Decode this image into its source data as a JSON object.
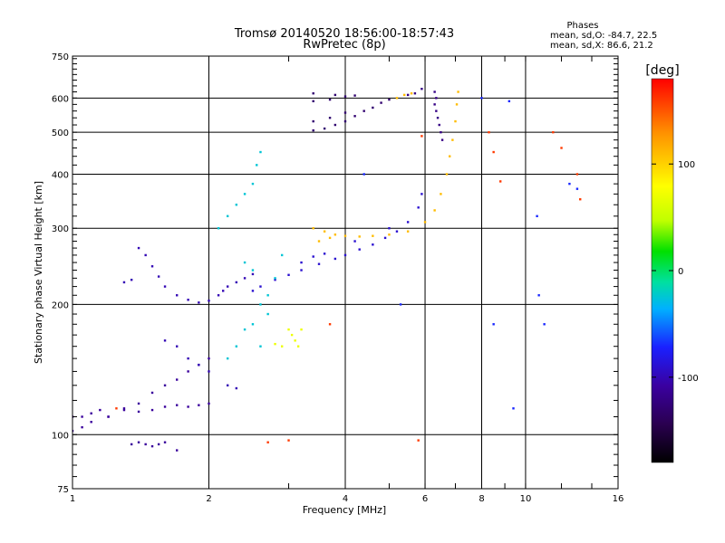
{
  "header": {
    "title": "Tromsø 20140520 18:56:00-18:57:43",
    "subtitle": "RwPretec (8p)"
  },
  "stats": {
    "heading": "Phases",
    "o_line": "mean, sd,O: -84.7, 22.5",
    "x_line": "mean, sd,X:  86.6, 21.2"
  },
  "chart_data": {
    "type": "scatter",
    "title": "Tromsø 20140520 18:56:00-18:57:43",
    "subtitle": "RwPretec (8p)",
    "xlabel": "Frequency [MHz]",
    "ylabel": "Stationary phase Virtual Height [km]",
    "x_scale": "log",
    "y_scale": "log",
    "xlim": [
      1,
      16
    ],
    "ylim": [
      75,
      750
    ],
    "x_ticks": [
      1,
      2,
      4,
      6,
      8,
      10,
      16
    ],
    "x_tick_labels": [
      "1",
      "2",
      "4",
      "6",
      "8",
      "10",
      "16"
    ],
    "y_ticks": [
      75,
      100,
      200,
      300,
      400,
      500,
      600,
      750
    ],
    "y_tick_labels": [
      "75",
      "100",
      "200",
      "300",
      "400",
      "500",
      "600",
      "750"
    ],
    "grid": true,
    "colorbar": {
      "label": "[deg]",
      "range": [
        -180,
        180
      ],
      "ticks": [
        100,
        0,
        -100
      ],
      "tick_labels": [
        "100",
        "0",
        "-100"
      ],
      "colormap": [
        "#000000",
        "#2a0050",
        "#3a00a0",
        "#1a20ff",
        "#00b0ff",
        "#00e0a0",
        "#00e000",
        "#c0ff00",
        "#ffff00",
        "#ff9000",
        "#ff0000"
      ]
    },
    "series": [
      {
        "color_phase": -110,
        "points": [
          [
            1.0,
            110
          ],
          [
            1.05,
            110
          ],
          [
            1.1,
            112
          ],
          [
            1.15,
            114
          ],
          [
            1.2,
            110
          ],
          [
            1.3,
            114
          ],
          [
            1.4,
            113
          ],
          [
            1.5,
            114
          ],
          [
            1.6,
            116
          ],
          [
            1.7,
            117
          ],
          [
            1.8,
            116
          ],
          [
            1.9,
            117
          ],
          [
            2.0,
            118
          ],
          [
            1.0,
            102
          ],
          [
            1.05,
            104
          ],
          [
            1.1,
            107
          ],
          [
            1.2,
            110
          ],
          [
            1.3,
            115
          ],
          [
            1.4,
            118
          ],
          [
            1.5,
            125
          ],
          [
            1.6,
            130
          ],
          [
            1.7,
            134
          ],
          [
            1.8,
            140
          ],
          [
            1.9,
            145
          ],
          [
            2.0,
            150
          ],
          [
            1.35,
            95
          ],
          [
            1.4,
            96
          ],
          [
            1.45,
            95
          ],
          [
            1.5,
            94
          ],
          [
            1.55,
            95
          ],
          [
            1.6,
            96
          ],
          [
            1.7,
            92
          ]
        ]
      },
      {
        "color_phase": -100,
        "points": [
          [
            1.4,
            270
          ],
          [
            1.45,
            260
          ],
          [
            1.5,
            245
          ],
          [
            1.55,
            232
          ],
          [
            1.6,
            220
          ],
          [
            1.7,
            210
          ],
          [
            1.8,
            205
          ],
          [
            1.9,
            202
          ],
          [
            2.0,
            204
          ],
          [
            2.1,
            210
          ],
          [
            2.15,
            215
          ],
          [
            2.2,
            220
          ],
          [
            2.3,
            225
          ],
          [
            2.4,
            230
          ],
          [
            2.5,
            235
          ],
          [
            1.3,
            225
          ],
          [
            1.35,
            228
          ],
          [
            1.6,
            165
          ],
          [
            1.7,
            160
          ],
          [
            1.8,
            150
          ],
          [
            1.9,
            145
          ],
          [
            2.0,
            140
          ],
          [
            2.2,
            130
          ],
          [
            2.3,
            128
          ]
        ]
      },
      {
        "color_phase": -90,
        "points": [
          [
            2.5,
            215
          ],
          [
            2.6,
            220
          ],
          [
            2.8,
            228
          ],
          [
            3.0,
            234
          ],
          [
            3.2,
            240
          ],
          [
            3.5,
            248
          ],
          [
            3.8,
            255
          ],
          [
            4.0,
            260
          ],
          [
            4.3,
            268
          ],
          [
            4.6,
            275
          ],
          [
            4.9,
            285
          ],
          [
            5.2,
            295
          ],
          [
            5.5,
            310
          ],
          [
            5.8,
            335
          ],
          [
            5.9,
            360
          ],
          [
            3.2,
            250
          ],
          [
            3.4,
            258
          ],
          [
            3.6,
            262
          ],
          [
            4.2,
            280
          ],
          [
            5.0,
            300
          ]
        ]
      },
      {
        "color_phase": -130,
        "points": [
          [
            3.4,
            505
          ],
          [
            3.6,
            510
          ],
          [
            3.8,
            520
          ],
          [
            4.0,
            530
          ],
          [
            4.2,
            545
          ],
          [
            4.4,
            560
          ],
          [
            4.6,
            570
          ],
          [
            4.8,
            585
          ],
          [
            5.0,
            595
          ],
          [
            3.4,
            530
          ],
          [
            3.7,
            540
          ],
          [
            4.0,
            555
          ],
          [
            3.4,
            590
          ],
          [
            3.7,
            595
          ],
          [
            4.0,
            605
          ],
          [
            3.4,
            615
          ],
          [
            3.8,
            610
          ],
          [
            4.2,
            608
          ]
        ]
      },
      {
        "color_phase": -120,
        "points": [
          [
            5.5,
            610
          ],
          [
            5.7,
            615
          ],
          [
            5.9,
            630
          ],
          [
            6.3,
            580
          ],
          [
            6.35,
            560
          ],
          [
            6.4,
            540
          ],
          [
            6.45,
            520
          ],
          [
            6.5,
            500
          ],
          [
            6.55,
            480
          ],
          [
            6.3,
            620
          ],
          [
            6.35,
            600
          ]
        ]
      },
      {
        "color_phase": -25,
        "points": [
          [
            2.1,
            300
          ],
          [
            2.2,
            320
          ],
          [
            2.3,
            340
          ],
          [
            2.4,
            360
          ],
          [
            2.5,
            380
          ],
          [
            2.55,
            420
          ],
          [
            2.6,
            450
          ],
          [
            2.4,
            250
          ],
          [
            2.5,
            240
          ],
          [
            2.6,
            200
          ],
          [
            2.7,
            190
          ],
          [
            2.5,
            180
          ],
          [
            2.4,
            175
          ],
          [
            2.3,
            160
          ],
          [
            2.2,
            150
          ],
          [
            2.6,
            160
          ],
          [
            2.7,
            210
          ],
          [
            2.8,
            230
          ],
          [
            2.9,
            260
          ]
        ]
      },
      {
        "color_phase": 110,
        "points": [
          [
            3.4,
            300
          ],
          [
            3.6,
            295
          ],
          [
            3.8,
            290
          ],
          [
            4.0,
            288
          ],
          [
            4.3,
            287
          ],
          [
            4.6,
            288
          ],
          [
            5.0,
            290
          ],
          [
            5.5,
            295
          ],
          [
            6.0,
            310
          ],
          [
            6.3,
            330
          ],
          [
            6.5,
            360
          ],
          [
            6.7,
            400
          ],
          [
            6.8,
            440
          ],
          [
            6.9,
            480
          ],
          [
            7.0,
            530
          ],
          [
            7.05,
            580
          ],
          [
            7.1,
            620
          ],
          [
            5.2,
            600
          ],
          [
            5.4,
            610
          ],
          [
            5.6,
            615
          ],
          [
            3.5,
            280
          ],
          [
            3.7,
            285
          ]
        ]
      },
      {
        "color_phase": 70,
        "points": [
          [
            3.0,
            175
          ],
          [
            3.05,
            170
          ],
          [
            3.1,
            165
          ],
          [
            3.15,
            160
          ],
          [
            3.2,
            175
          ],
          [
            2.8,
            162
          ],
          [
            2.9,
            160
          ]
        ]
      },
      {
        "color_phase": 160,
        "points": [
          [
            1.25,
            115
          ],
          [
            2.7,
            96
          ],
          [
            3.0,
            97
          ],
          [
            5.8,
            97
          ],
          [
            5.9,
            490
          ],
          [
            8.3,
            500
          ],
          [
            8.5,
            450
          ],
          [
            8.8,
            385
          ],
          [
            11.5,
            500
          ],
          [
            12.0,
            460
          ],
          [
            13.0,
            400
          ],
          [
            13.2,
            350
          ],
          [
            3.7,
            180
          ]
        ]
      },
      {
        "color_phase": -70,
        "points": [
          [
            8.0,
            600
          ],
          [
            9.2,
            590
          ],
          [
            8.5,
            180
          ],
          [
            9.4,
            115
          ],
          [
            10.6,
            320
          ],
          [
            10.7,
            210
          ],
          [
            11.0,
            180
          ],
          [
            12.5,
            380
          ],
          [
            13.0,
            370
          ],
          [
            5.3,
            200
          ],
          [
            4.4,
            400
          ]
        ]
      }
    ]
  }
}
